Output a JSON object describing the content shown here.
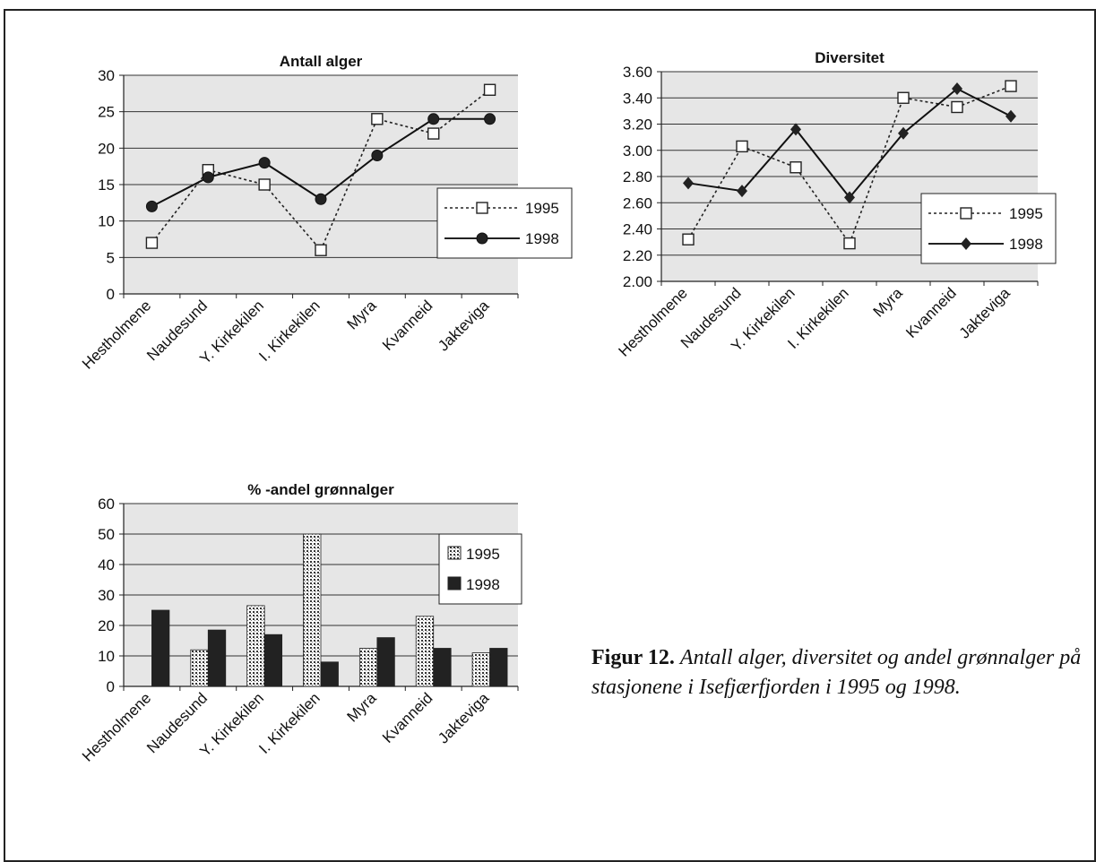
{
  "colors": {
    "plot_bg": "#e6e6e6",
    "axis": "#222222",
    "line_1995": "#222222",
    "line_1998": "#111111",
    "bar_1998": "#222222"
  },
  "figure": {
    "caption_label": "Figur 12.",
    "caption_text": "Antall alger, diversitet og andel grønnalger på stasjonene i Isefjærfjorden i 1995 og 1998."
  },
  "chart_data": [
    {
      "type": "line",
      "title": "Antall alger",
      "categories": [
        "Hestholmene",
        "Naudesund",
        "Y. Kirkekilen",
        "I. Kirkekilen",
        "Myra",
        "Kvanneid",
        "Jakteviga"
      ],
      "ylim": [
        0,
        30
      ],
      "yticks": [
        "0",
        "5",
        "10",
        "15",
        "20",
        "25",
        "30"
      ],
      "grid": true,
      "legend_position": "right",
      "series": [
        {
          "name": "1995",
          "style": "dotted-open-square",
          "values": [
            7,
            17,
            15,
            6,
            24,
            22,
            28
          ]
        },
        {
          "name": "1998",
          "style": "solid-filled-circle",
          "values": [
            12,
            16,
            18,
            13,
            19,
            24,
            24
          ]
        }
      ]
    },
    {
      "type": "line",
      "title": "Diversitet",
      "categories": [
        "Hestholmene",
        "Naudesund",
        "Y. Kirkekilen",
        "I. Kirkekilen",
        "Myra",
        "Kvanneid",
        "Jakteviga"
      ],
      "ylim": [
        2.0,
        3.6
      ],
      "yticks": [
        "2.00",
        "2.20",
        "2.40",
        "2.60",
        "2.80",
        "3.00",
        "3.20",
        "3.40",
        "3.60"
      ],
      "grid": true,
      "legend_position": "bottom-right",
      "series": [
        {
          "name": "1995",
          "style": "dotted-open-square",
          "values": [
            2.32,
            3.03,
            2.87,
            2.29,
            3.4,
            3.33,
            3.49
          ]
        },
        {
          "name": "1998",
          "style": "solid-filled-diamond",
          "values": [
            2.75,
            2.69,
            3.16,
            2.64,
            3.13,
            3.47,
            3.26
          ]
        }
      ]
    },
    {
      "type": "bar",
      "title": "% -andel grønnalger",
      "categories": [
        "Hestholmene",
        "Naudesund",
        "Y. Kirkekilen",
        "I. Kirkekilen",
        "Myra",
        "Kvanneid",
        "Jakteviga"
      ],
      "ylim": [
        0,
        60
      ],
      "yticks": [
        "0",
        "10",
        "20",
        "30",
        "40",
        "50",
        "60"
      ],
      "grid": true,
      "legend_position": "top-right",
      "series": [
        {
          "name": "1995",
          "style": "dotted-pattern",
          "values": [
            0,
            12,
            26.5,
            50,
            12.5,
            23,
            11
          ]
        },
        {
          "name": "1998",
          "style": "solid-dark",
          "values": [
            25,
            18.5,
            17,
            8,
            16,
            12.5,
            12.5
          ]
        }
      ]
    }
  ]
}
